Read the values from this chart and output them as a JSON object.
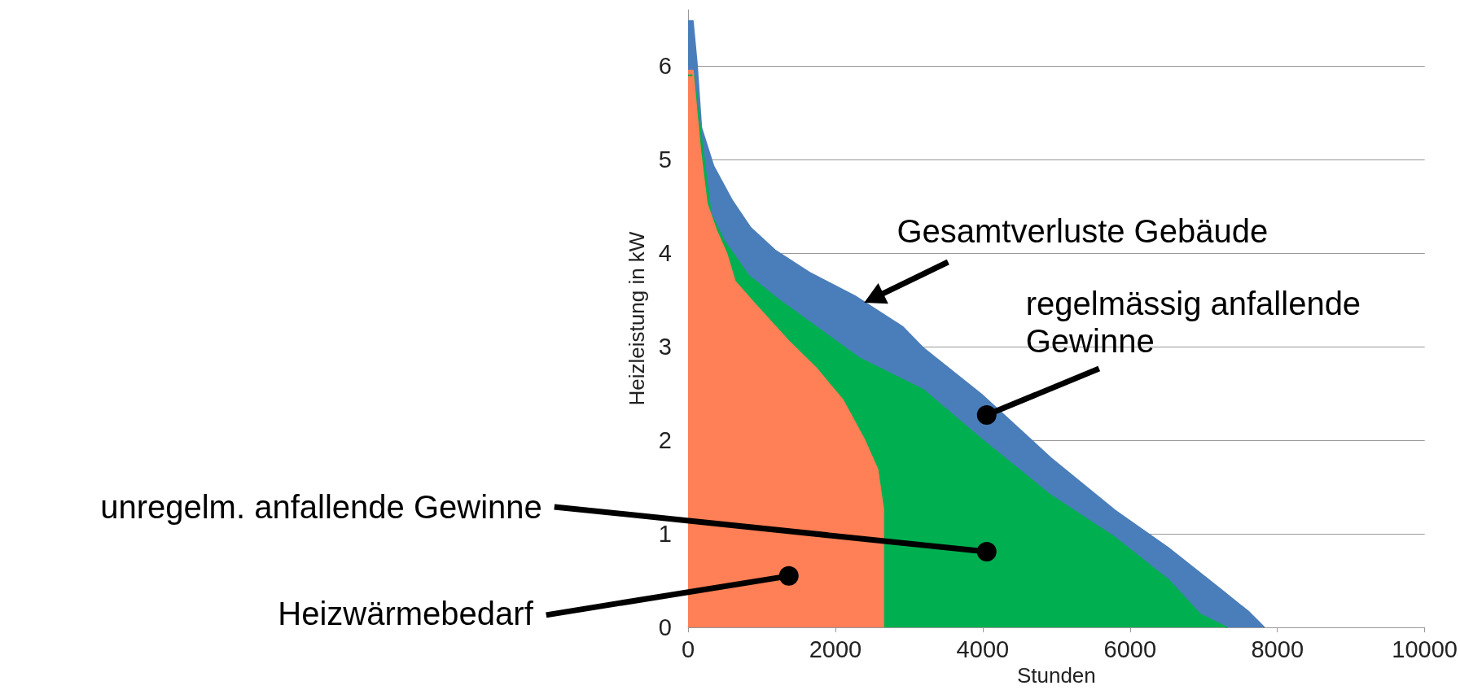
{
  "chart_data": {
    "type": "area",
    "xlabel": "Stunden",
    "ylabel": "Heizleistung in kW",
    "xlim": [
      0,
      10000
    ],
    "xticks": [
      0,
      2000,
      4000,
      6000,
      8000,
      10000
    ],
    "ylim": [
      0,
      6.6
    ],
    "yticks": [
      0,
      1,
      2,
      3,
      4,
      5,
      6
    ],
    "grid": "y",
    "marker": "none",
    "series": [
      {
        "color": "#4a7ebb",
        "x": [
          0,
          65,
          120,
          180,
          345,
          600,
          850,
          1180,
          1650,
          2265,
          2915,
          3187,
          3983,
          4925,
          5795,
          6518,
          7240,
          7605,
          7823
        ],
        "values": [
          6.48,
          6.48,
          6.02,
          5.34,
          4.93,
          4.56,
          4.27,
          4.03,
          3.79,
          3.54,
          3.21,
          2.99,
          2.49,
          1.81,
          1.25,
          0.85,
          0.4,
          0.17,
          0
        ]
      },
      {
        "color": "#00b050",
        "x": [
          0,
          80,
          130,
          200,
          310,
          490,
          820,
          1180,
          2320,
          3190,
          3985,
          4925,
          5795,
          6518,
          6950,
          7315
        ],
        "values": [
          5.9,
          5.9,
          5.56,
          5.1,
          4.42,
          4.13,
          3.76,
          3.53,
          2.88,
          2.54,
          2.01,
          1.41,
          0.96,
          0.51,
          0.14,
          0
        ]
      },
      {
        "color": "#ff7f56",
        "x": [
          0,
          65,
          110,
          165,
          255,
          380,
          525,
          635,
          890,
          1376,
          1738,
          2100,
          2390,
          2571,
          2643,
          2650,
          2650
        ],
        "values": [
          5.95,
          5.95,
          5.57,
          5.11,
          4.53,
          4.25,
          3.99,
          3.7,
          3.47,
          3.05,
          2.77,
          2.43,
          2.01,
          1.69,
          1.3,
          1.27,
          0
        ]
      }
    ],
    "annotations": [
      {
        "text": "Gesamtverluste Gebäude",
        "x": 2391,
        "y": 3.47
      },
      {
        "text": "regelmässig anfallende Gewinne",
        "x": 4054,
        "y": 2.27
      },
      {
        "text": "unregelm. anfallende Gewinne",
        "x": 4054,
        "y": 0.81
      },
      {
        "text": "Heizwärmebedarf",
        "x": 1368,
        "y": 0.55
      }
    ]
  }
}
